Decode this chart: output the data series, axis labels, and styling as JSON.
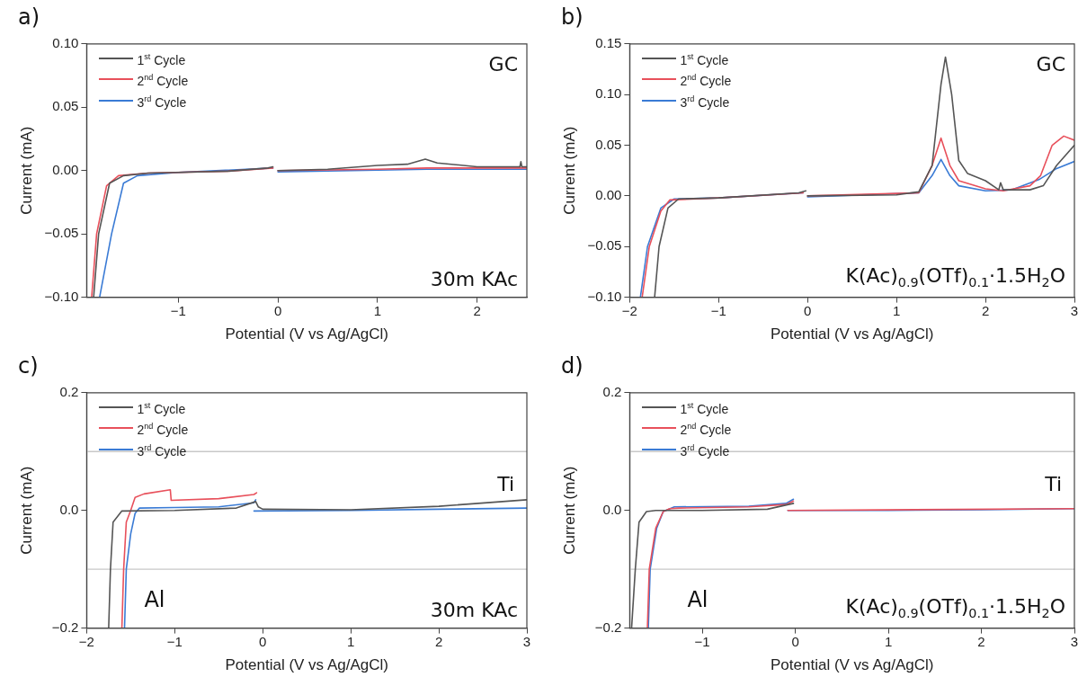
{
  "chart_data": [
    {
      "type": "line",
      "title": "a)",
      "xlabel": "Potential (V vs Ag/AgCl)",
      "ylabel": "Current (mA)",
      "xlim": [
        -1.92,
        2.5
      ],
      "xticks": [
        -1,
        0,
        1,
        2
      ],
      "ylim": [
        -0.1,
        0.1
      ],
      "yticks": [
        {
          "value": -0.1,
          "label": "−0.10"
        },
        -0.05,
        {
          "value": 0,
          "label": "0.00"
        },
        0.05,
        {
          "value": 0.1,
          "label": "0.10"
        }
      ],
      "grid": false,
      "legend": "top left",
      "marker": "none",
      "line_style": "solid",
      "annotations": [
        "GC",
        "30m KAc"
      ],
      "series": [
        {
          "name": "1$^{st}$ Cycle",
          "color": "#555555",
          "x": [
            -1.85,
            -1.8,
            -1.69,
            -1.55,
            -1.3,
            -1.0,
            -0.5,
            -0.1,
            -0.05,
            -0.02,
            0,
            0.5,
            1.0,
            1.3,
            1.48,
            1.6,
            2.0,
            2.43,
            2.44,
            2.45,
            2.5
          ],
          "values": [
            -0.1,
            -0.05,
            -0.01,
            -0.004,
            -0.002,
            -0.0015,
            -0.0005,
            0.002,
            0.003,
            null,
            0,
            0.001,
            0.004,
            0.005,
            0.009,
            0.006,
            0.003,
            0.003,
            0.007,
            0.003,
            0.003
          ]
        },
        {
          "name": "2$^{nd}$ Cycle",
          "color": "#e8505b",
          "x": [
            -1.87,
            -1.82,
            -1.72,
            -1.6,
            -1.3,
            -0.5,
            -0.05,
            -0.02,
            0,
            1.0,
            1.5,
            2.5
          ],
          "values": [
            -0.1,
            -0.05,
            -0.012,
            -0.004,
            -0.002,
            -0.0005,
            0.002,
            null,
            0,
            0.001,
            0.002,
            0.002
          ]
        },
        {
          "name": "3$^{rd}$ Cycle",
          "color": "#3a7bd5",
          "x": [
            -1.79,
            -1.67,
            -1.55,
            -1.41,
            -1.0,
            -0.05,
            -0.02,
            0,
            1.5,
            2.5
          ],
          "values": [
            -0.1,
            -0.05,
            -0.01,
            -0.004,
            -0.0015,
            0.002,
            null,
            -0.001,
            0.001,
            0.001
          ]
        }
      ]
    },
    {
      "type": "line",
      "title": "b)",
      "xlabel": "Potential (V vs Ag/AgCl)",
      "ylabel": "Current (mA)",
      "xlim": [
        -2,
        3
      ],
      "xticks": [
        -2,
        -1,
        0,
        1,
        2,
        3
      ],
      "ylim": [
        -0.1,
        0.15
      ],
      "yticks": [
        {
          "value": -0.1,
          "label": "−0.10"
        },
        -0.05,
        {
          "value": 0,
          "label": "0.00"
        },
        0.05,
        {
          "value": 0.1,
          "label": "0.10"
        },
        0.15
      ],
      "grid": false,
      "legend": "top left",
      "marker": "none",
      "line_style": "solid",
      "annotations": [
        "GC",
        "K(Ac)$_{0.9}$(OTf)$_{0.1}$·1.5H$_{2}$O"
      ],
      "series": [
        {
          "name": "1$^{st}$ Cycle",
          "color": "#555555",
          "x": [
            -1.72,
            -1.67,
            -1.57,
            -1.45,
            -1.0,
            -0.1,
            -0.02,
            -0.01,
            0,
            1.0,
            1.25,
            1.4,
            1.5,
            1.55,
            1.62,
            1.7,
            1.8,
            2.0,
            2.15,
            2.17,
            2.2,
            2.5,
            2.65,
            2.8,
            3.0
          ],
          "values": [
            -0.1,
            -0.05,
            -0.012,
            -0.003,
            -0.002,
            0.003,
            0.005,
            null,
            0,
            0.001,
            0.004,
            0.03,
            0.11,
            0.137,
            0.1,
            0.035,
            0.022,
            0.015,
            0.006,
            0.013,
            0.006,
            0.006,
            0.01,
            0.03,
            0.05
          ]
        },
        {
          "name": "2$^{nd}$ Cycle",
          "color": "#e8505b",
          "x": [
            -1.86,
            -1.78,
            -1.65,
            -1.55,
            -1.0,
            -0.05,
            -0.02,
            0,
            1.25,
            1.4,
            1.5,
            1.6,
            1.7,
            2.0,
            2.2,
            2.5,
            2.62,
            2.75,
            2.88,
            3.0
          ],
          "values": [
            -0.1,
            -0.05,
            -0.015,
            -0.004,
            -0.002,
            0.003,
            null,
            0,
            0.003,
            0.03,
            0.057,
            0.03,
            0.015,
            0.007,
            0.005,
            0.01,
            0.02,
            0.05,
            0.059,
            0.055
          ]
        },
        {
          "name": "3$^{rd}$ Cycle",
          "color": "#3a7bd5",
          "x": [
            -1.88,
            -1.8,
            -1.65,
            -1.5,
            -1.0,
            -0.05,
            -0.02,
            0,
            1.25,
            1.4,
            1.5,
            1.6,
            1.7,
            2.0,
            2.3,
            2.6,
            2.8,
            3.0
          ],
          "values": [
            -0.1,
            -0.05,
            -0.012,
            -0.003,
            -0.002,
            0.003,
            null,
            -0.001,
            0.003,
            0.02,
            0.036,
            0.02,
            0.01,
            0.005,
            0.006,
            0.016,
            0.027,
            0.034
          ]
        }
      ]
    },
    {
      "type": "line",
      "title": "c)",
      "xlabel": "Potential (V vs Ag/AgCl)",
      "ylabel": "Current (mA)",
      "xlim": [
        -2,
        3
      ],
      "xticks": [
        -2,
        -1,
        0,
        1,
        2,
        3
      ],
      "ylim": [
        -0.2,
        0.2
      ],
      "yticks": [
        -0.2,
        {
          "value": 0,
          "label": "0.0"
        },
        0.2
      ],
      "grid": false,
      "legend": "top left",
      "marker": "none",
      "line_style": "solid",
      "annotations": [
        "Ti",
        "Al",
        "30m KAc"
      ],
      "ref_lines": [
        {
          "axis": "y",
          "value": 0.1,
          "color": "#c8c8c8"
        },
        {
          "axis": "y",
          "value": -0.1,
          "color": "#c8c8c8"
        }
      ],
      "series": [
        {
          "name": "1$^{st}$ Cycle",
          "color": "#555555",
          "x": [
            -1.75,
            -1.73,
            -1.7,
            -1.6,
            -1.0,
            -0.3,
            -0.08,
            -0.05,
            0,
            1.0,
            2.0,
            3.0
          ],
          "values": [
            -0.2,
            -0.1,
            -0.02,
            -0.001,
            0,
            0.004,
            0.015,
            0.006,
            0.002,
            0.001,
            0.007,
            0.018
          ]
        },
        {
          "name": "2$^{nd}$ Cycle",
          "color": "#e8505b",
          "x": [
            -1.6,
            -1.58,
            -1.55,
            -1.5,
            -1.45,
            -1.35,
            -1.05,
            -1.04,
            -0.5,
            -0.1,
            -0.07
          ],
          "values": [
            -0.2,
            -0.1,
            -0.02,
            0,
            0.022,
            0.028,
            0.035,
            0.017,
            0.02,
            0.027,
            0.03
          ]
        },
        {
          "name": "3$^{rd}$ Cycle",
          "color": "#3a7bd5",
          "x": [
            -1.57,
            -1.55,
            -1.5,
            -1.45,
            -1.4,
            -1.0,
            -0.5,
            -0.1,
            -0.08,
            -0.09,
            -0.1,
            1.0,
            2.0,
            3.0
          ],
          "values": [
            -0.2,
            -0.1,
            -0.04,
            -0.005,
            0.004,
            0.005,
            0.006,
            0.013,
            0.018,
            null,
            -0.001,
            0,
            0.002,
            0.004
          ]
        }
      ]
    },
    {
      "type": "line",
      "title": "d)",
      "xlabel": "Potential (V vs Ag/AgCl)",
      "ylabel": "Current (mA)",
      "xlim": [
        -1.78,
        3
      ],
      "xticks": [
        -1,
        0,
        1,
        2,
        3
      ],
      "ylim": [
        -0.2,
        0.2
      ],
      "yticks": [
        -0.2,
        {
          "value": 0,
          "label": "0.0"
        },
        0.2
      ],
      "grid": false,
      "legend": "top left",
      "marker": "none",
      "line_style": "solid",
      "annotations": [
        "Ti",
        "Al",
        "K(Ac)$_{0.9}$(OTf)$_{0.1}$·1.5H$_{2}$O"
      ],
      "ref_lines": [
        {
          "axis": "y",
          "value": 0.1,
          "color": "#c8c8c8"
        },
        {
          "axis": "y",
          "value": -0.1,
          "color": "#c8c8c8"
        }
      ],
      "series": [
        {
          "name": "1$^{st}$ Cycle",
          "color": "#555555",
          "x": [
            -1.76,
            -1.72,
            -1.68,
            -1.6,
            -1.5,
            -1.0,
            -0.3,
            -0.02
          ],
          "values": [
            -0.2,
            -0.1,
            -0.02,
            -0.002,
            0,
            0,
            0.002,
            0.012
          ]
        },
        {
          "name": "2$^{nd}$ Cycle",
          "color": "#e8505b",
          "x": [
            -1.59,
            -1.57,
            -1.5,
            -1.42,
            -1.35,
            -1.25,
            -0.5,
            -0.1,
            -0.02,
            -0.05,
            -0.08,
            3.0
          ],
          "values": [
            -0.2,
            -0.1,
            -0.03,
            -0.002,
            0.003,
            0.004,
            0.006,
            0.01,
            0.016,
            null,
            0,
            0.003
          ]
        },
        {
          "name": "3$^{rd}$ Cycle",
          "color": "#3a7bd5",
          "x": [
            -1.58,
            -1.56,
            -1.49,
            -1.42,
            -1.3,
            -0.5,
            -0.1,
            -0.02,
            -0.05,
            -0.08,
            1.0,
            2.0,
            3.0
          ],
          "values": [
            -0.2,
            -0.1,
            -0.03,
            -0.002,
            0.006,
            0.007,
            0.012,
            0.019,
            null,
            0,
            0,
            0.001,
            0.003
          ]
        }
      ]
    }
  ]
}
